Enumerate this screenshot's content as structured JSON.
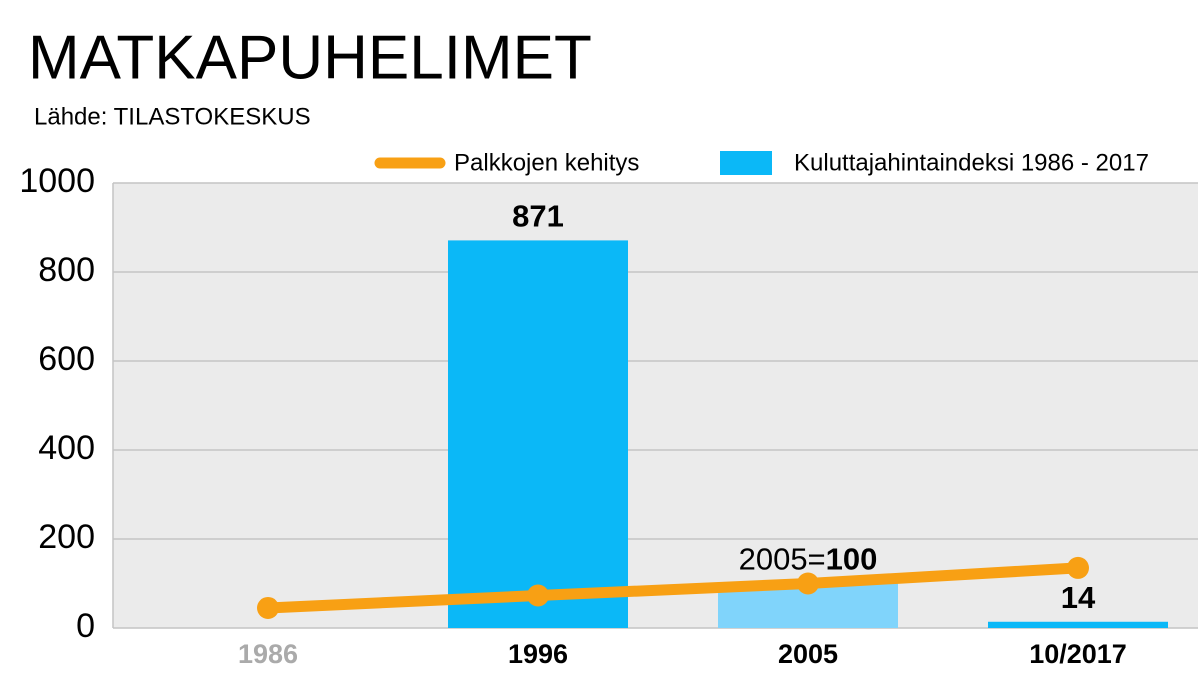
{
  "chart_data": {
    "type": "bar",
    "title": "MATKAPUHELIMET",
    "subtitle": "Lähde: TILASTOKESKUS",
    "categories": [
      "1986",
      "1996",
      "2005",
      "10/2017"
    ],
    "category_colors": [
      "#aaaaaa",
      "#000000",
      "#000000",
      "#000000"
    ],
    "series": [
      {
        "name": "Palkkojen kehitys",
        "type": "line",
        "color": "#f8a014",
        "values": [
          45,
          73,
          100,
          135
        ]
      },
      {
        "name": "Kuluttajahintaindeksi 1986 - 2017",
        "type": "bar",
        "color": "#0bb8f7",
        "colors": [
          "#0bb8f7",
          "#0bb8f7",
          "#80d4fb",
          "#0bb8f7"
        ],
        "values": [
          null,
          871,
          100,
          14
        ],
        "value_labels": [
          null,
          "871",
          "2005=100",
          "14"
        ]
      }
    ],
    "ylim": [
      0,
      1000
    ],
    "yticks": [
      0,
      200,
      400,
      600,
      800,
      1000
    ],
    "grid": true
  }
}
